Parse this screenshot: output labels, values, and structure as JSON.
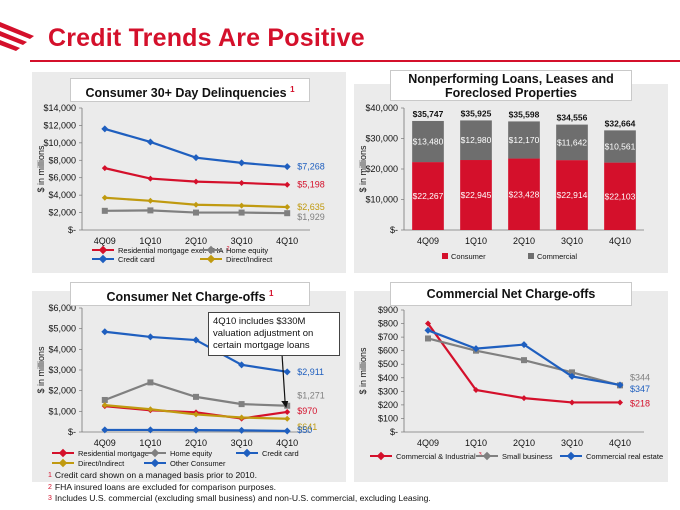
{
  "page_title": "Credit Trends Are Positive",
  "footnotes": [
    {
      "num": "1",
      "text": "Credit card shown on a managed basis prior to 2010."
    },
    {
      "num": "2",
      "text": "FHA insured loans are excluded for comparison purposes."
    },
    {
      "num": "3",
      "text": "Includes U.S. commercial (excluding small business) and non-U.S. commercial, excluding Leasing."
    }
  ],
  "chart_data": [
    {
      "id": "delinq",
      "type": "line",
      "title": "Consumer 30+ Day Delinquencies",
      "title_sup": "1",
      "ylabel": "$ in millions",
      "ylim": [
        0,
        14000
      ],
      "yticks": [
        "$-",
        "$2,000",
        "$4,000",
        "$6,000",
        "$8,000",
        "$10,000",
        "$12,000",
        "$14,000"
      ],
      "categories": [
        "4Q09",
        "1Q10",
        "2Q10",
        "3Q10",
        "4Q10"
      ],
      "series": [
        {
          "name": "Residential mortgage excl. FHA",
          "sup": "2",
          "color": "#d4102b",
          "values": [
            7100,
            5900,
            5550,
            5400,
            5198
          ],
          "end_label": "$5,198"
        },
        {
          "name": "Home equity",
          "color": "#808080",
          "values": [
            2200,
            2250,
            2000,
            2000,
            1929
          ],
          "end_label": "$1,929"
        },
        {
          "name": "Credit card",
          "color": "#1f5fbf",
          "values": [
            11600,
            10100,
            8300,
            7700,
            7268
          ],
          "end_label": "$7,268"
        },
        {
          "name": "Direct/Indirect",
          "color": "#c09a10",
          "values": [
            3700,
            3350,
            2900,
            2800,
            2635
          ],
          "end_label": "$2,635"
        }
      ]
    },
    {
      "id": "npl",
      "type": "bar",
      "stacked": true,
      "title": "Nonperforming Loans, Leases and Foreclosed Properties",
      "ylabel": "$ in millions",
      "ylim": [
        0,
        40000
      ],
      "yticks": [
        "$-",
        "$10,000",
        "$20,000",
        "$30,000",
        "$40,000"
      ],
      "categories": [
        "4Q09",
        "1Q10",
        "2Q10",
        "3Q10",
        "4Q10"
      ],
      "series": [
        {
          "name": "Consumer",
          "color": "#d4102b",
          "values": [
            22267,
            22945,
            23428,
            22914,
            22103
          ],
          "labels": [
            "$22,267",
            "$22,945",
            "$23,428",
            "$22,914",
            "$22,103"
          ]
        },
        {
          "name": "Commercial",
          "color": "#6e6e6e",
          "values": [
            13480,
            12980,
            12170,
            11642,
            10561
          ],
          "labels": [
            "$13,480",
            "$12,980",
            "$12,170",
            "$11,642",
            "$10,561"
          ]
        }
      ],
      "totals": [
        "$35,747",
        "$35,925",
        "$35,598",
        "$34,556",
        "$32,664"
      ]
    },
    {
      "id": "cnco",
      "type": "line",
      "title": "Consumer Net Charge-offs",
      "title_sup": "1",
      "ylabel": "$ in millions",
      "ylim": [
        0,
        6000
      ],
      "yticks": [
        "$-",
        "$1,000",
        "$2,000",
        "$3,000",
        "$4,000",
        "$5,000",
        "$6,000"
      ],
      "categories": [
        "4Q09",
        "1Q10",
        "2Q10",
        "3Q10",
        "4Q10"
      ],
      "annotation": "4Q10 includes $330M valuation adjustment on certain mortgage loans",
      "series": [
        {
          "name": "Residential mortgage",
          "color": "#d4102b",
          "values": [
            1250,
            1050,
            950,
            650,
            970
          ],
          "end_label": "$970"
        },
        {
          "name": "Home equity",
          "color": "#808080",
          "values": [
            1550,
            2400,
            1700,
            1350,
            1271
          ],
          "end_label": "$1,271"
        },
        {
          "name": "Credit card",
          "color": "#1f5fbf",
          "values": [
            4850,
            4600,
            4450,
            3250,
            2911
          ],
          "end_label": "$2,911"
        },
        {
          "name": "Direct/Indirect",
          "color": "#c09a10",
          "values": [
            1300,
            1100,
            850,
            700,
            641
          ],
          "end_label": "$641"
        },
        {
          "name": "Other Consumer",
          "color": "#1f5fbf",
          "values": [
            100,
            100,
            90,
            80,
            50
          ],
          "end_label": "$50"
        }
      ]
    },
    {
      "id": "comnco",
      "type": "line",
      "title": "Commercial Net Charge-offs",
      "ylabel": "$ in millions",
      "ylim": [
        0,
        900
      ],
      "yticks": [
        "$-",
        "$100",
        "$200",
        "$300",
        "$400",
        "$500",
        "$600",
        "$700",
        "$800",
        "$900"
      ],
      "categories": [
        "4Q09",
        "1Q10",
        "2Q10",
        "3Q10",
        "4Q10"
      ],
      "series": [
        {
          "name": "Commercial & Industrial",
          "sup": "3",
          "color": "#d4102b",
          "values": [
            800,
            310,
            250,
            218,
            218
          ],
          "end_label": "$218"
        },
        {
          "name": "Small business",
          "color": "#808080",
          "values": [
            690,
            600,
            530,
            440,
            344
          ],
          "end_label": "$344"
        },
        {
          "name": "Commercial real estate",
          "color": "#1f5fbf",
          "values": [
            750,
            615,
            645,
            410,
            347
          ],
          "end_label": "$347"
        }
      ]
    }
  ]
}
